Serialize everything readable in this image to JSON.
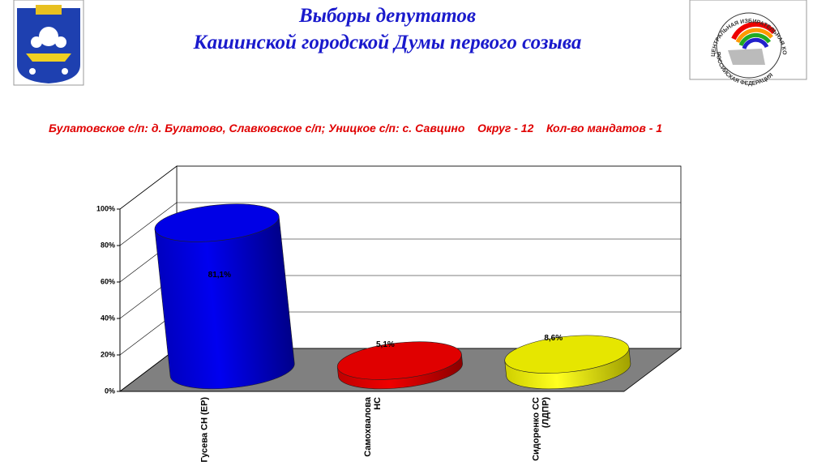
{
  "chart_data": {
    "type": "cylinder",
    "title": [
      "Выборы депутатов",
      "Кашинской городской Думы первого созыва"
    ],
    "subtitle": "Булатовское с/п: д. Булатово, Славковское с/п; Уницкое с/п: с. Савцино    Округ - 12    Кол-во мандатов - 1",
    "categories": [
      [
        "Гусева СН (ЕР)"
      ],
      [
        "Самохвалова",
        "НС"
      ],
      [
        "Сидоренко СС",
        "(ЛДПР)"
      ]
    ],
    "values": [
      81.1,
      5.1,
      8.6
    ],
    "value_labels": [
      "81,1%",
      "5,1%",
      "8,6%"
    ],
    "colors": [
      "#0000e6",
      "#e00000",
      "#e6e600"
    ],
    "ylim": [
      0,
      100
    ],
    "yticks": [
      {
        "value": 0,
        "label": "0%"
      },
      {
        "value": 20,
        "label": "20%"
      },
      {
        "value": 40,
        "label": "40%"
      },
      {
        "value": 60,
        "label": "60%"
      },
      {
        "value": 80,
        "label": "80%"
      },
      {
        "value": 100,
        "label": "100%"
      }
    ],
    "grid": true
  },
  "emblem_text": [
    "ЦЕНТРАЛЬНАЯ ИЗБИРАТЕЛЬНАЯ КОМИССИЯ",
    "РОССИЙСКАЯ ФЕДЕРАЦИЯ"
  ]
}
